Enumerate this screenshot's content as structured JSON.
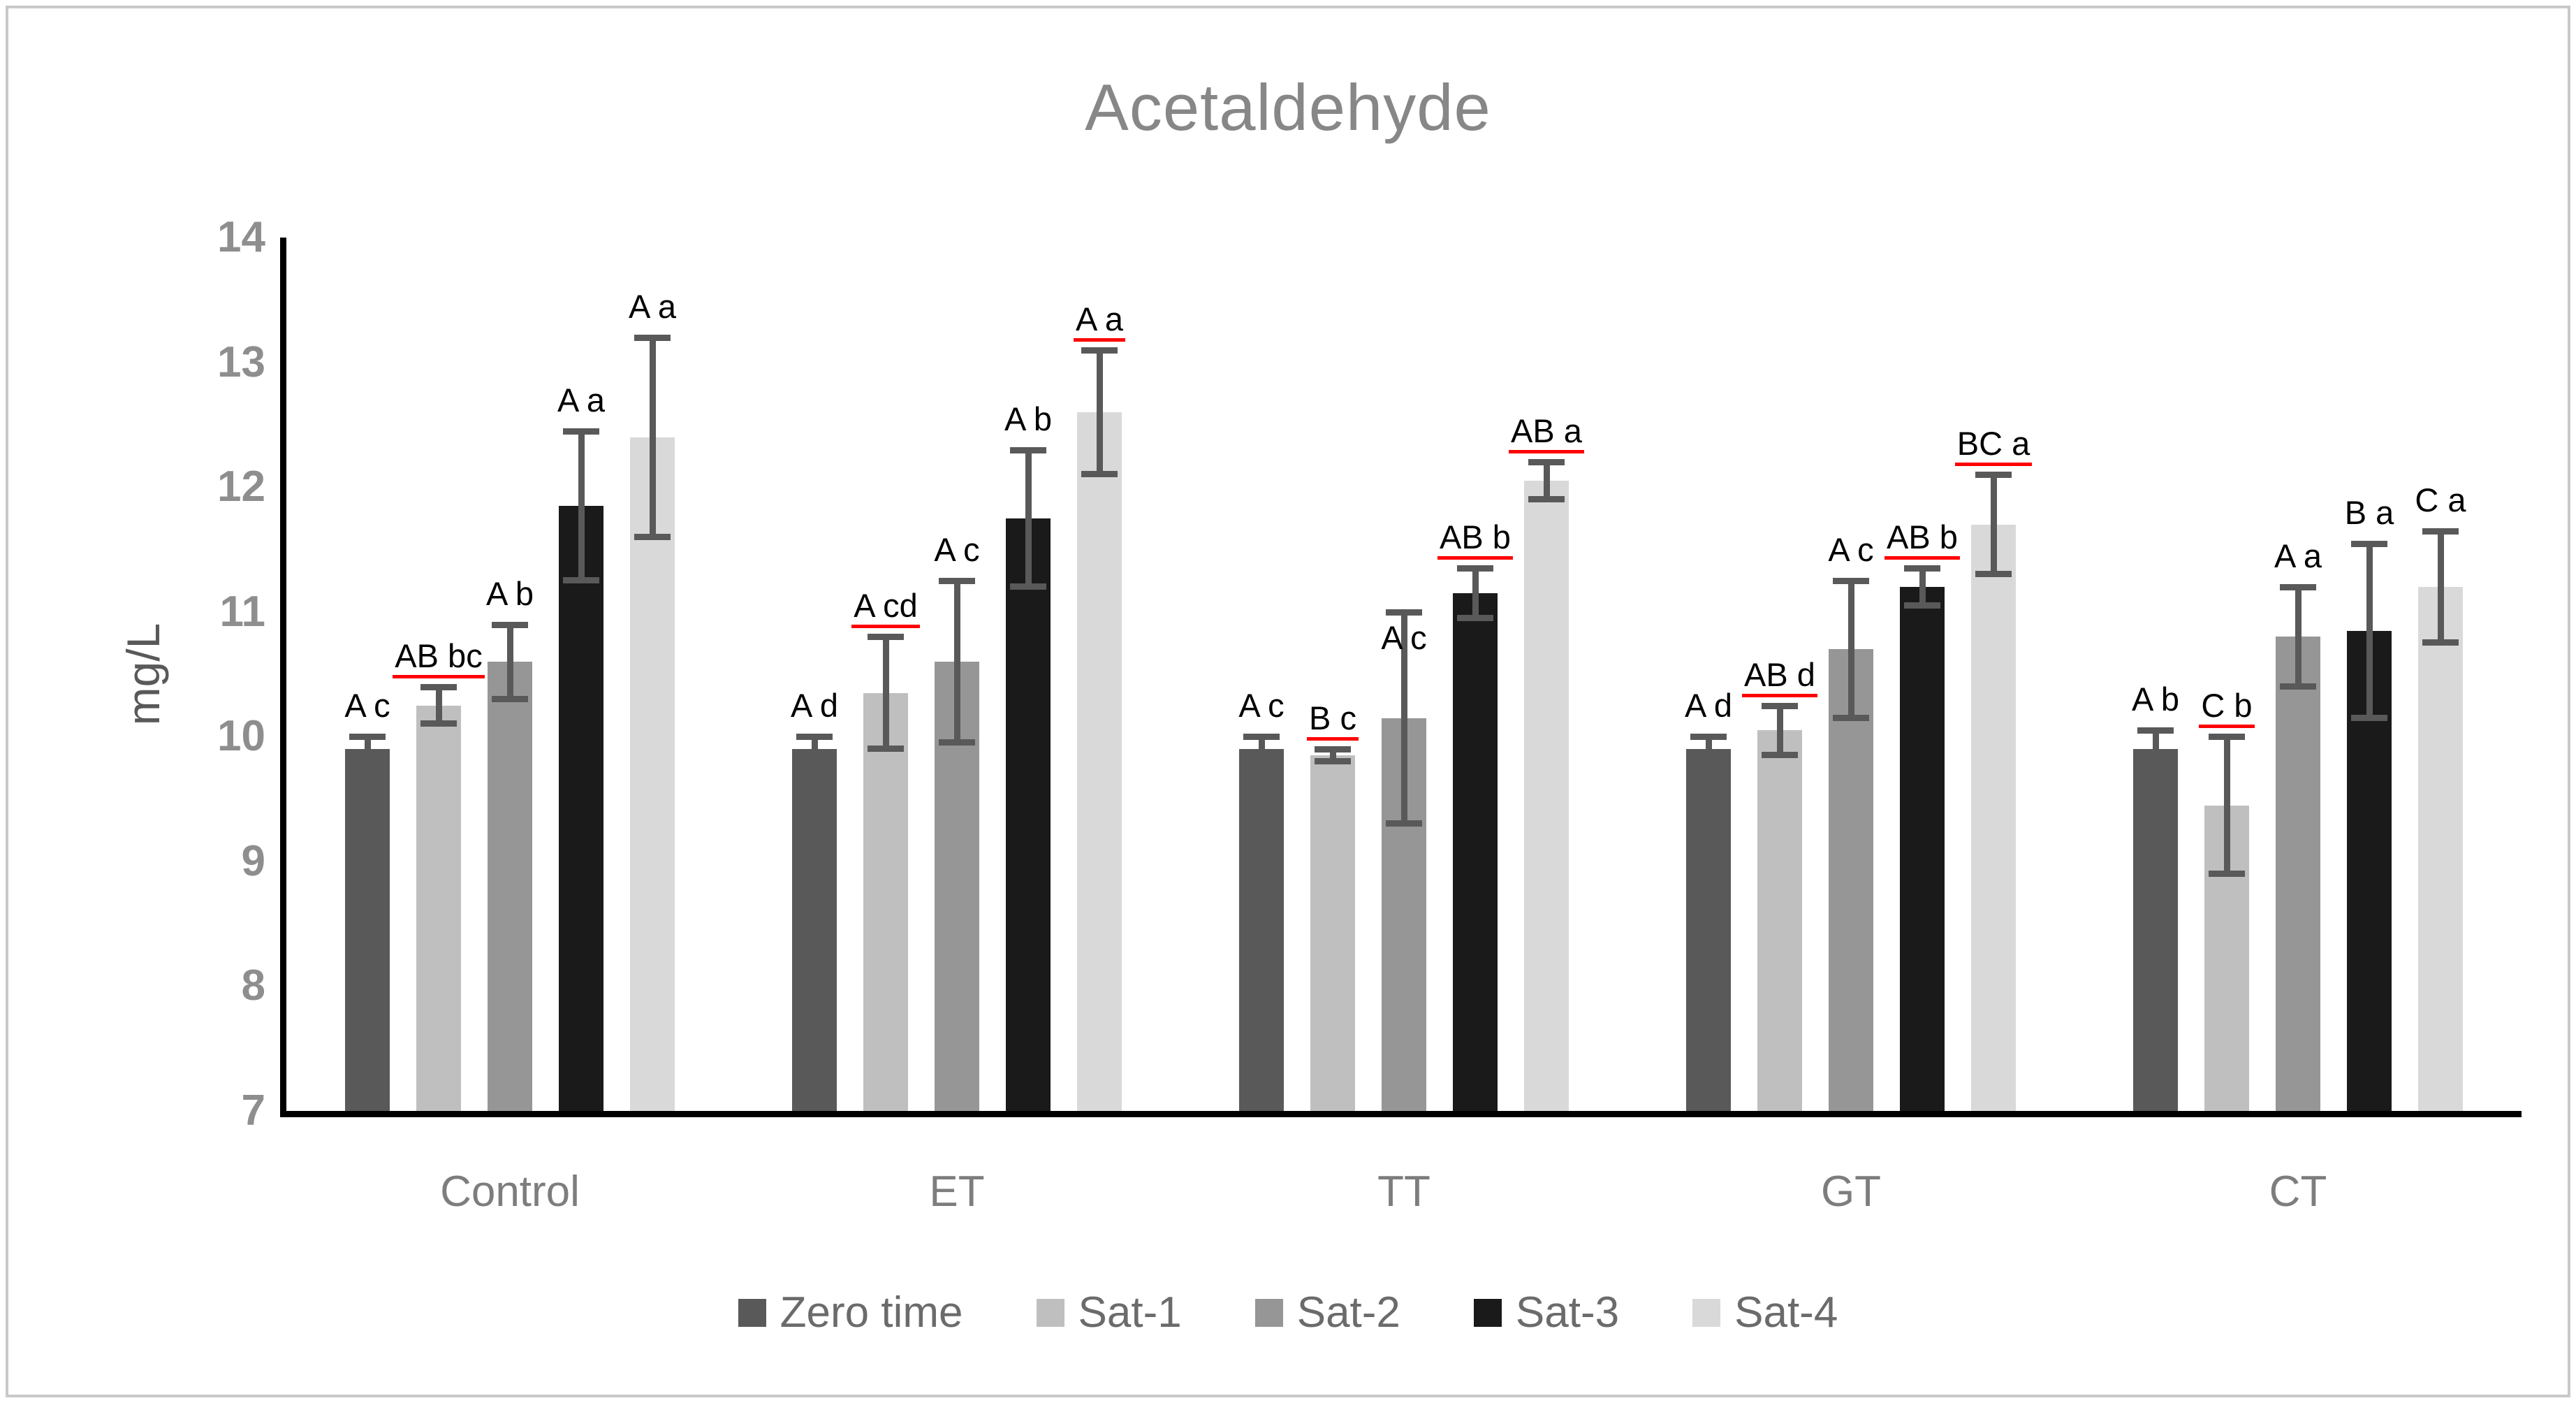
{
  "chart_data": {
    "type": "bar",
    "title": "Acetaldehyde",
    "ylabel": "mg/L",
    "ylim": [
      7,
      14
    ],
    "yticks": [
      7,
      8,
      9,
      10,
      11,
      12,
      13,
      14
    ],
    "grid": false,
    "legend_position": "bottom",
    "categories": [
      "Control",
      "ET",
      "TT",
      "GT",
      "CT"
    ],
    "series": [
      {
        "name": "Zero time",
        "color": "#595959",
        "values": [
          9.9,
          9.9,
          9.9,
          9.9,
          9.9
        ],
        "errors": [
          0.1,
          0.1,
          0.1,
          0.1,
          0.15
        ],
        "sig_labels": [
          "A c",
          "A d",
          "A c",
          "A d",
          "A b"
        ],
        "sig_underline": [
          false,
          false,
          false,
          false,
          false
        ]
      },
      {
        "name": "Sat-1",
        "color": "#bfbfbf",
        "values": [
          10.25,
          10.35,
          9.85,
          10.05,
          9.45
        ],
        "errors": [
          0.15,
          0.45,
          0.05,
          0.2,
          0.55
        ],
        "sig_labels": [
          "AB bc",
          "A cd",
          "B c",
          "AB d",
          "C b"
        ],
        "sig_underline": [
          true,
          true,
          true,
          true,
          true
        ]
      },
      {
        "name": "Sat-2",
        "color": "#969696",
        "values": [
          10.6,
          10.6,
          10.15,
          10.7,
          10.8
        ],
        "errors": [
          0.3,
          0.65,
          0.85,
          0.55,
          0.4
        ],
        "sig_labels": [
          "A b",
          "A c",
          "A c",
          "A c",
          "A a"
        ],
        "sig_underline": [
          false,
          false,
          false,
          false,
          false
        ]
      },
      {
        "name": "Sat-3",
        "color": "#1a1a1a",
        "values": [
          11.85,
          11.75,
          11.15,
          11.2,
          10.85
        ],
        "errors": [
          0.6,
          0.55,
          0.2,
          0.15,
          0.7
        ],
        "sig_labels": [
          "A a",
          "A b",
          "AB b",
          "AB b",
          "B a"
        ],
        "sig_underline": [
          false,
          false,
          true,
          true,
          false
        ]
      },
      {
        "name": "Sat-4",
        "color": "#d9d9d9",
        "values": [
          12.4,
          12.6,
          12.05,
          11.7,
          11.2
        ],
        "errors": [
          0.8,
          0.5,
          0.15,
          0.4,
          0.45
        ],
        "sig_labels": [
          "A a",
          "A a",
          "AB a",
          "BC a",
          "C a"
        ],
        "sig_underline": [
          false,
          true,
          true,
          true,
          false
        ]
      }
    ],
    "label_overrides": [
      {
        "series": 2,
        "group": 2,
        "top_value": 10.95
      }
    ],
    "colors": {
      "axis": "#000000",
      "error_bar": "#595959",
      "title_text": "#878787",
      "tick_text": "#8e8e8e",
      "category_text": "#7d7d7d",
      "legend_text": "#6b6b6b",
      "sig_text": "#000000",
      "sig_underline": "#ff0000",
      "frame_border": "#c9c9c9"
    }
  }
}
